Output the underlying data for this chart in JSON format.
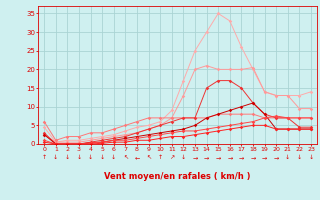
{
  "xlabel": "Vent moyen/en rafales ( km/h )",
  "bg_color": "#cff0f0",
  "grid_color": "#aad4d4",
  "text_color": "#dd0000",
  "xlim": [
    -0.5,
    23.5
  ],
  "ylim": [
    0,
    37
  ],
  "yticks": [
    0,
    5,
    10,
    15,
    20,
    25,
    30,
    35
  ],
  "xticks": [
    0,
    1,
    2,
    3,
    4,
    5,
    6,
    7,
    8,
    9,
    10,
    11,
    12,
    13,
    14,
    15,
    16,
    17,
    18,
    19,
    20,
    21,
    22,
    23
  ],
  "lines": [
    {
      "color": "#ffaaaa",
      "x": [
        0,
        1,
        2,
        3,
        4,
        5,
        6,
        7,
        8,
        9,
        10,
        11,
        12,
        13,
        14,
        15,
        16,
        17,
        18,
        19,
        20,
        21,
        22,
        23
      ],
      "y": [
        4.5,
        0.5,
        1.0,
        1.0,
        1.5,
        2.0,
        2.5,
        3.5,
        4.5,
        5.0,
        6.0,
        9.0,
        17.0,
        25.0,
        30.0,
        35.0,
        33.0,
        26.0,
        20.0,
        14.0,
        13.0,
        13.0,
        13.0,
        14.0
      ]
    },
    {
      "color": "#ff9999",
      "x": [
        0,
        1,
        2,
        3,
        4,
        5,
        6,
        7,
        8,
        9,
        10,
        11,
        12,
        13,
        14,
        15,
        16,
        17,
        18,
        19,
        20,
        21,
        22,
        23
      ],
      "y": [
        2.5,
        0.5,
        0.5,
        0.5,
        1.0,
        1.5,
        2.0,
        2.5,
        3.0,
        4.0,
        5.0,
        7.0,
        13.0,
        20.0,
        21.0,
        20.0,
        20.0,
        20.0,
        20.5,
        14.0,
        13.0,
        13.0,
        9.5,
        9.5
      ]
    },
    {
      "color": "#ff7777",
      "x": [
        0,
        1,
        2,
        3,
        4,
        5,
        6,
        7,
        8,
        9,
        10,
        11,
        12,
        13,
        14,
        15,
        16,
        17,
        18,
        19,
        20,
        21,
        22,
        23
      ],
      "y": [
        6.0,
        1.0,
        2.0,
        2.0,
        3.0,
        3.0,
        4.0,
        5.0,
        6.0,
        7.0,
        7.0,
        7.0,
        7.0,
        7.0,
        7.0,
        8.0,
        8.0,
        8.0,
        8.0,
        7.0,
        7.0,
        7.0,
        7.0,
        7.0
      ]
    },
    {
      "color": "#ee3333",
      "x": [
        0,
        1,
        2,
        3,
        4,
        5,
        6,
        7,
        8,
        9,
        10,
        11,
        12,
        13,
        14,
        15,
        16,
        17,
        18,
        19,
        20,
        21,
        22,
        23
      ],
      "y": [
        3.0,
        0.0,
        0.0,
        0.0,
        0.5,
        1.0,
        1.5,
        2.0,
        3.0,
        4.0,
        5.0,
        6.0,
        7.0,
        7.0,
        15.0,
        17.0,
        17.0,
        15.0,
        11.0,
        8.0,
        7.0,
        7.0,
        4.5,
        4.5
      ]
    },
    {
      "color": "#cc0000",
      "x": [
        0,
        1,
        2,
        3,
        4,
        5,
        6,
        7,
        8,
        9,
        10,
        11,
        12,
        13,
        14,
        15,
        16,
        17,
        18,
        19,
        20,
        21,
        22,
        23
      ],
      "y": [
        2.5,
        0.0,
        0.0,
        0.0,
        0.3,
        0.5,
        1.0,
        1.5,
        2.0,
        2.5,
        3.0,
        3.5,
        4.0,
        5.0,
        7.0,
        8.0,
        9.0,
        10.0,
        11.0,
        8.0,
        4.0,
        4.0,
        4.0,
        4.0
      ]
    },
    {
      "color": "#ff4444",
      "x": [
        0,
        1,
        2,
        3,
        4,
        5,
        6,
        7,
        8,
        9,
        10,
        11,
        12,
        13,
        14,
        15,
        16,
        17,
        18,
        19,
        20,
        21,
        22,
        23
      ],
      "y": [
        1.0,
        0.0,
        0.0,
        0.0,
        0.3,
        0.5,
        1.0,
        1.0,
        1.5,
        2.0,
        2.5,
        3.0,
        3.5,
        3.5,
        4.0,
        4.5,
        5.0,
        5.5,
        6.0,
        7.0,
        7.5,
        7.0,
        7.0,
        7.0
      ]
    },
    {
      "color": "#ff2222",
      "x": [
        0,
        1,
        2,
        3,
        4,
        5,
        6,
        7,
        8,
        9,
        10,
        11,
        12,
        13,
        14,
        15,
        16,
        17,
        18,
        19,
        20,
        21,
        22,
        23
      ],
      "y": [
        0.5,
        0.0,
        0.0,
        0.0,
        0.0,
        0.2,
        0.5,
        0.5,
        1.0,
        1.0,
        1.5,
        2.0,
        2.0,
        2.5,
        3.0,
        3.5,
        4.0,
        4.5,
        5.0,
        5.0,
        4.0,
        4.0,
        4.0,
        4.0
      ]
    }
  ],
  "arrow_symbols": [
    "↑",
    "↓",
    "↓",
    "↓",
    "↓",
    "↓",
    "↓",
    "↖",
    "←",
    "↖",
    "↑",
    "↗",
    "↓",
    "→",
    "→",
    "→",
    "→",
    "→",
    "→",
    "→",
    "→",
    "↓",
    "↓",
    "↓"
  ]
}
